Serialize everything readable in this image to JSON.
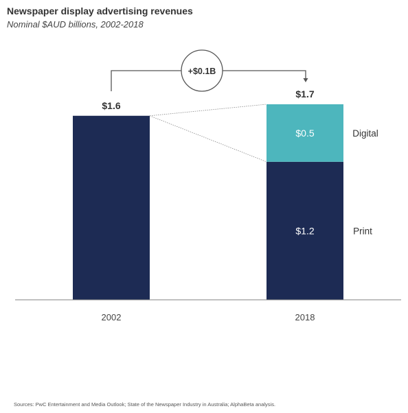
{
  "header": {
    "title": "Newspaper display advertising revenues",
    "subtitle": "Nominal $AUD billions, 2002-2018"
  },
  "source": "Sources: PwC Entertainment and Media Outlook; State of the Newspaper Industry in Australia; AlphaBeta analysis.",
  "colors": {
    "print": "#1d2b54",
    "digital": "#4db6bd",
    "axis": "#808080",
    "connector": "#555555"
  },
  "chart_data": {
    "type": "bar",
    "stacked": true,
    "categories": [
      "2002",
      "2018"
    ],
    "series": [
      {
        "name": "Print",
        "values": [
          1.6,
          1.2
        ]
      },
      {
        "name": "Digital",
        "values": [
          0,
          0.5
        ]
      }
    ],
    "value_labels": [
      "$1.6",
      "$1.2",
      "$0.5"
    ],
    "totals": [
      1.6,
      1.7
    ],
    "total_labels": [
      "$1.6",
      "$1.7"
    ],
    "change_label": "+$0.1B",
    "ylim": [
      0,
      1.7
    ],
    "grid": false,
    "legend": "right of 2018 bar"
  }
}
